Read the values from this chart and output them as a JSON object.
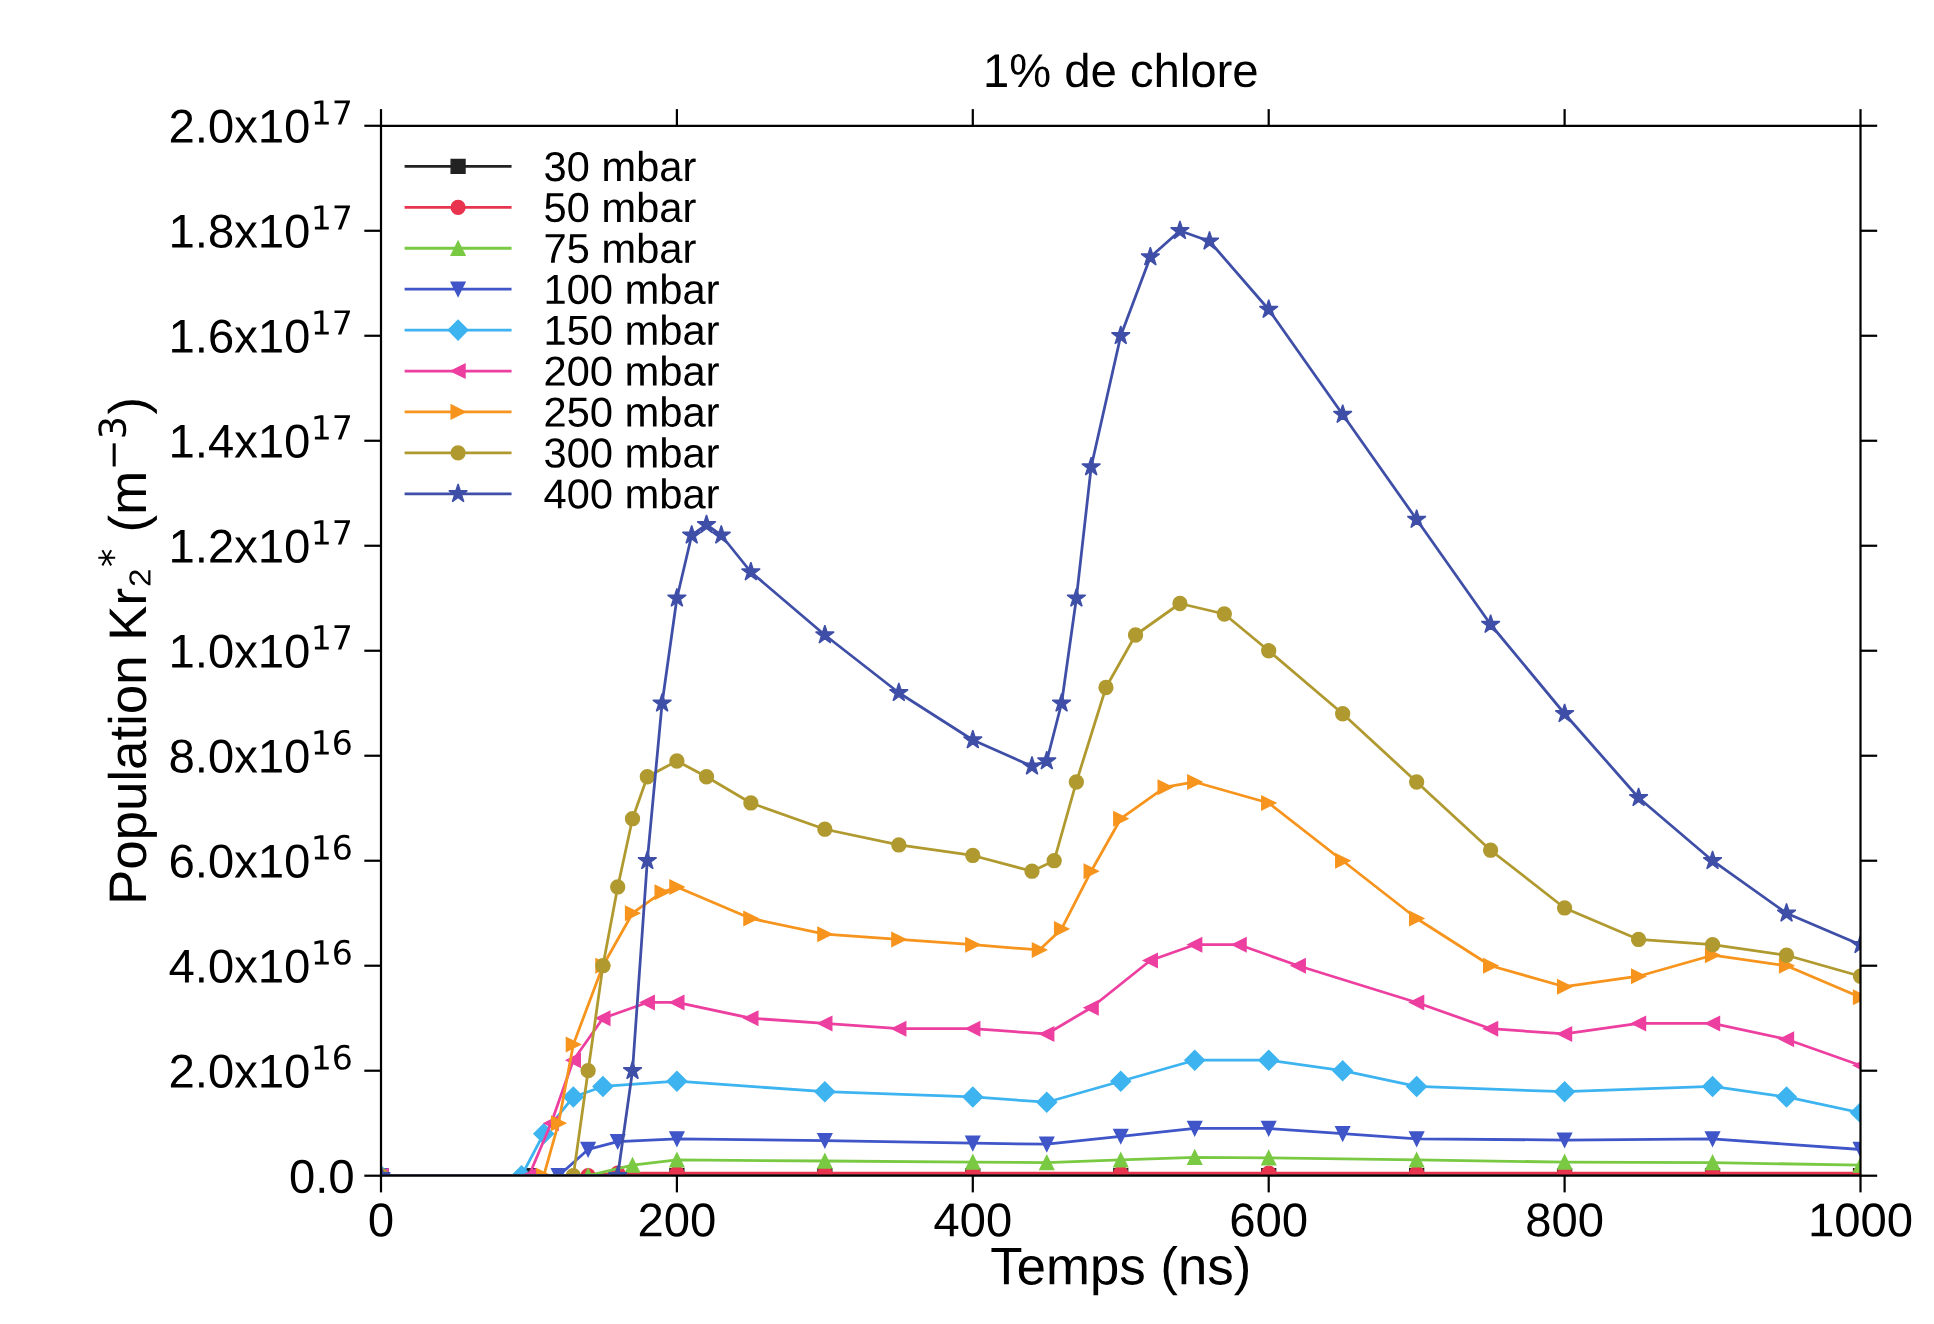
{
  "chart_data": {
    "type": "line",
    "title": "1% de chlore",
    "xlabel": "Temps (ns)",
    "ylabel": "Population Kr₂$^{*}$ (m$^{−3}$)",
    "xlim": [
      0,
      1000
    ],
    "xticks": [
      0,
      200,
      400,
      600,
      800,
      1000
    ],
    "ylim": [
      0,
      2e+17
    ],
    "yticks": [
      {
        "value": 0,
        "label": "0.0"
      },
      {
        "value": 2e+16,
        "label": "2.0x10$^{16}$"
      },
      {
        "value": 4e+16,
        "label": "4.0x10$^{16}$"
      },
      {
        "value": 6e+16,
        "label": "6.0x10$^{16}$"
      },
      {
        "value": 8e+16,
        "label": "8.0x10$^{16}$"
      },
      {
        "value": 1e+17,
        "label": "1.0x10$^{17}$"
      },
      {
        "value": 1.2e+17,
        "label": "1.2x10$^{17}$"
      },
      {
        "value": 1.4e+17,
        "label": "1.4x10$^{17}$"
      },
      {
        "value": 1.6e+17,
        "label": "1.6x10$^{17}$"
      },
      {
        "value": 1.8e+17,
        "label": "1.8x10$^{17}$"
      },
      {
        "value": 2e+17,
        "label": "2.0x10$^{17}$"
      }
    ],
    "grid": false,
    "legend": "top left",
    "line_style": "solid",
    "series": [
      {
        "name": "30 mbar",
        "color": "#222222",
        "marker": "square",
        "x": [
          0,
          100,
          200,
          300,
          400,
          500,
          600,
          700,
          800,
          900,
          1000
        ],
        "values": [
          0,
          0,
          0,
          0,
          0,
          0,
          0,
          0,
          0,
          0,
          0
        ]
      },
      {
        "name": "50 mbar",
        "color": "#e8344e",
        "marker": "circle",
        "x": [
          0,
          140,
          160,
          200,
          300,
          400,
          500,
          600,
          700,
          800,
          900,
          1000
        ],
        "values": [
          0,
          0,
          500000000000000.0,
          500000000000000.0,
          500000000000000.0,
          500000000000000.0,
          500000000000000.0,
          500000000000000.0,
          500000000000000.0,
          500000000000000.0,
          500000000000000.0,
          500000000000000.0
        ]
      },
      {
        "name": "75 mbar",
        "color": "#7ac943",
        "marker": "triangle",
        "x": [
          0,
          140,
          170,
          200,
          300,
          400,
          450,
          500,
          550,
          600,
          700,
          800,
          900,
          1000
        ],
        "values": [
          0,
          0,
          2000000000000000.0,
          3000000000000000.0,
          2800000000000000.0,
          2600000000000000.0,
          2500000000000000.0,
          3000000000000000.0,
          3500000000000000.0,
          3400000000000000.0,
          3000000000000000.0,
          2600000000000000.0,
          2500000000000000.0,
          2000000000000000.0
        ]
      },
      {
        "name": "100 mbar",
        "color": "#3f55c8",
        "marker": "triangle_down",
        "x": [
          0,
          120,
          140,
          160,
          200,
          300,
          400,
          450,
          500,
          550,
          600,
          650,
          700,
          800,
          900,
          1000
        ],
        "values": [
          0,
          0,
          5000000000000000.0,
          6500000000000000.0,
          7000000000000000.0,
          6700000000000000.0,
          6200000000000000.0,
          6000000000000000.0,
          7500000000000000.0,
          9000000000000000.0,
          9000000000000000.0,
          8000000000000000.0,
          7000000000000000.0,
          6800000000000000.0,
          7000000000000000.0,
          5000000000000000.0
        ]
      },
      {
        "name": "150 mbar",
        "color": "#3db4f0",
        "marker": "diamond",
        "x": [
          0,
          95,
          110,
          130,
          150,
          200,
          300,
          400,
          450,
          500,
          550,
          600,
          650,
          700,
          800,
          900,
          950,
          1000
        ],
        "values": [
          0,
          0,
          8000000000000000.0,
          1.5e+16,
          1.7e+16,
          1.8e+16,
          1.6e+16,
          1.5e+16,
          1.4e+16,
          1.8e+16,
          2.2e+16,
          2.2e+16,
          2e+16,
          1.7e+16,
          1.6e+16,
          1.7e+16,
          1.5e+16,
          1.2e+16
        ]
      },
      {
        "name": "200 mbar",
        "color": "#ec3fa0",
        "marker": "triangle_left",
        "x": [
          0,
          100,
          115,
          130,
          150,
          180,
          200,
          250,
          300,
          350,
          400,
          450,
          480,
          520,
          550,
          580,
          620,
          700,
          750,
          800,
          850,
          900,
          950,
          1000
        ],
        "values": [
          0,
          0,
          1e+16,
          2.2e+16,
          3e+16,
          3.3e+16,
          3.3e+16,
          3e+16,
          2.9e+16,
          2.8e+16,
          2.8e+16,
          2.7e+16,
          3.2e+16,
          4.1e+16,
          4.4e+16,
          4.4e+16,
          4e+16,
          3.3e+16,
          2.8e+16,
          2.7e+16,
          2.9e+16,
          2.9e+16,
          2.6e+16,
          2.1e+16
        ]
      },
      {
        "name": "250 mbar",
        "color": "#f7941d",
        "marker": "triangle_right",
        "x": [
          0,
          110,
          120,
          130,
          150,
          170,
          190,
          200,
          250,
          300,
          350,
          400,
          445,
          460,
          480,
          500,
          530,
          550,
          600,
          650,
          700,
          750,
          800,
          850,
          900,
          950,
          1000
        ],
        "values": [
          0,
          0,
          1e+16,
          2.5e+16,
          4e+16,
          5e+16,
          5.4e+16,
          5.5e+16,
          4.9e+16,
          4.6e+16,
          4.5e+16,
          4.4e+16,
          4.3e+16,
          4.7e+16,
          5.8e+16,
          6.8e+16,
          7.4e+16,
          7.5e+16,
          7.1e+16,
          6e+16,
          4.9e+16,
          4e+16,
          3.6e+16,
          3.8e+16,
          4.2e+16,
          4e+16,
          3.4e+16
        ]
      },
      {
        "name": "300 mbar",
        "color": "#b09a30",
        "marker": "circle",
        "x": [
          0,
          130,
          140,
          150,
          160,
          170,
          180,
          200,
          220,
          250,
          300,
          350,
          400,
          440,
          455,
          470,
          490,
          510,
          540,
          570,
          600,
          650,
          700,
          750,
          800,
          850,
          900,
          950,
          1000
        ],
        "values": [
          0,
          0,
          2e+16,
          4e+16,
          5.5e+16,
          6.8e+16,
          7.6e+16,
          7.9e+16,
          7.6e+16,
          7.1e+16,
          6.6e+16,
          6.3e+16,
          6.1e+16,
          5.8e+16,
          6e+16,
          7.5e+16,
          9.3e+16,
          1.03e+17,
          1.09e+17,
          1.07e+17,
          1e+17,
          8.8e+16,
          7.5e+16,
          6.2e+16,
          5.1e+16,
          4.5e+16,
          4.4e+16,
          4.2e+16,
          3.8e+16
        ]
      },
      {
        "name": "400 mbar",
        "color": "#3f4fa8",
        "marker": "star",
        "x": [
          0,
          160,
          170,
          180,
          190,
          200,
          210,
          220,
          230,
          250,
          300,
          350,
          400,
          440,
          450,
          460,
          470,
          480,
          500,
          520,
          540,
          560,
          600,
          650,
          700,
          750,
          800,
          850,
          900,
          950,
          1000
        ],
        "values": [
          0,
          0,
          2e+16,
          6e+16,
          9e+16,
          1.1e+17,
          1.22e+17,
          1.24e+17,
          1.22e+17,
          1.15e+17,
          1.03e+17,
          9.2e+16,
          8.3e+16,
          7.8e+16,
          7.9e+16,
          9e+16,
          1.1e+17,
          1.35e+17,
          1.6e+17,
          1.75e+17,
          1.8e+17,
          1.78e+17,
          1.65e+17,
          1.45e+17,
          1.25e+17,
          1.05e+17,
          8.8e+16,
          7.2e+16,
          6e+16,
          5e+16,
          4.4e+16
        ]
      }
    ]
  }
}
